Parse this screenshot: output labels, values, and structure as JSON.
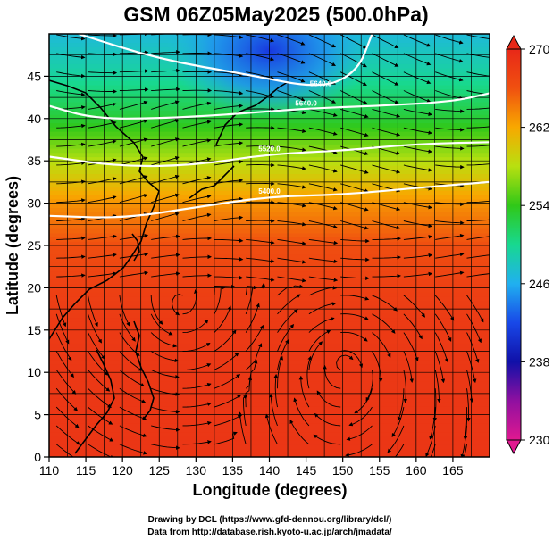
{
  "chart_data": {
    "type": "heatmap",
    "title": "GSM 06Z05May2025 (500.0hPa)",
    "xlabel": "Longitude (degrees)",
    "ylabel": "Latitude  (degrees)",
    "xlim": [
      110,
      170
    ],
    "ylim": [
      0,
      50
    ],
    "xticks": [
      "110",
      "115",
      "120",
      "125",
      "130",
      "135",
      "140",
      "145",
      "150",
      "155",
      "160",
      "165"
    ],
    "yticks": [
      "0",
      "5",
      "10",
      "15",
      "20",
      "25",
      "30",
      "35",
      "40",
      "45"
    ],
    "colorbar": {
      "min": 230,
      "max": 270,
      "ticks": [
        "230",
        "238",
        "246",
        "254",
        "262",
        "270"
      ],
      "stops": [
        {
          "t": 230,
          "color": "#e01890"
        },
        {
          "t": 234,
          "color": "#9010a0"
        },
        {
          "t": 238,
          "color": "#1010a8"
        },
        {
          "t": 242,
          "color": "#1848e8"
        },
        {
          "t": 246,
          "color": "#20b0f0"
        },
        {
          "t": 250,
          "color": "#18d890"
        },
        {
          "t": 254,
          "color": "#30c818"
        },
        {
          "t": 258,
          "color": "#b8e010"
        },
        {
          "t": 262,
          "color": "#f8a800"
        },
        {
          "t": 266,
          "color": "#f05010"
        },
        {
          "t": 270,
          "color": "#e82818"
        }
      ]
    },
    "temperature_profile": [
      {
        "lat": 0,
        "value": 268.6
      },
      {
        "lat": 5,
        "value": 268.5
      },
      {
        "lat": 10,
        "value": 268.4
      },
      {
        "lat": 15,
        "value": 268.2
      },
      {
        "lat": 20,
        "value": 267.6
      },
      {
        "lat": 25,
        "value": 266.2
      },
      {
        "lat": 30,
        "value": 263.0
      },
      {
        "lat": 35,
        "value": 258.0
      },
      {
        "lat": 40,
        "value": 253.0
      },
      {
        "lat": 45,
        "value": 249.5
      },
      {
        "lat": 50,
        "value": 247.0
      }
    ],
    "contours": [
      {
        "label": "5400.0",
        "points": [
          [
            110,
            28.5
          ],
          [
            120,
            28.2
          ],
          [
            130,
            29.5
          ],
          [
            140,
            30.8
          ],
          [
            150,
            31.0
          ],
          [
            160,
            31.8
          ],
          [
            170,
            32.5
          ]
        ]
      },
      {
        "label": "5520.0",
        "points": [
          [
            110,
            35.5
          ],
          [
            120,
            34.3
          ],
          [
            130,
            34.5
          ],
          [
            140,
            35.8
          ],
          [
            150,
            36.2
          ],
          [
            160,
            37.0
          ],
          [
            170,
            37.2
          ]
        ]
      },
      {
        "label": "5640.0",
        "points": [
          [
            110,
            41.5
          ],
          [
            116,
            40.0
          ],
          [
            125,
            40.0
          ],
          [
            135,
            40.5
          ],
          [
            145,
            41.2
          ],
          [
            155,
            41.5
          ],
          [
            165,
            42.0
          ],
          [
            170,
            43.0
          ]
        ]
      },
      {
        "label": "5640.0",
        "points": [
          [
            114,
            50
          ],
          [
            125,
            47.0
          ],
          [
            137,
            45.2
          ],
          [
            147,
            43.5
          ],
          [
            152,
            45.5
          ],
          [
            154,
            50
          ]
        ]
      }
    ],
    "cold_core": {
      "lon": 140,
      "lat": 48,
      "value": 240
    },
    "credits": [
      "Drawing by DCL (https://www.gfd-dennou.org/library/dcl/)",
      "Data from http://database.rish.kyoto-u.ac.jp/arch/jmadata/"
    ]
  }
}
